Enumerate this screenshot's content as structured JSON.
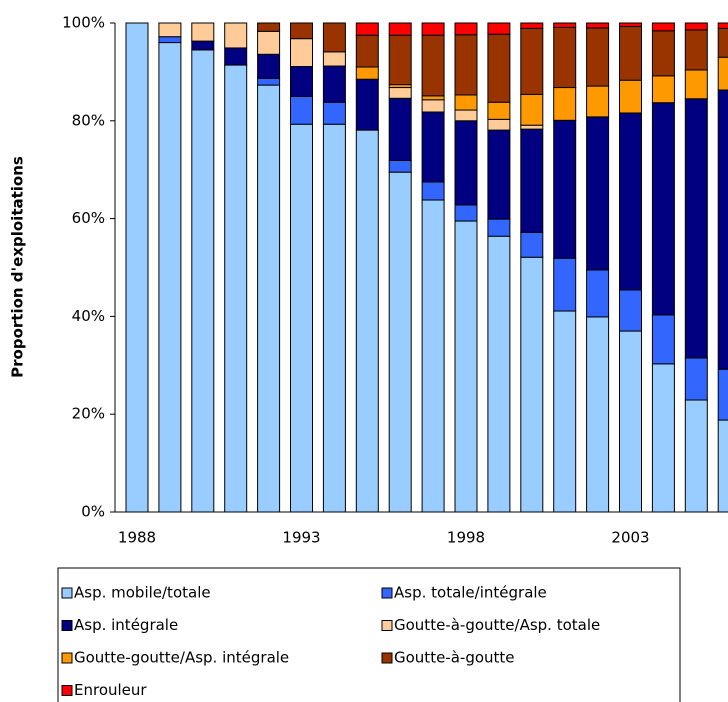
{
  "chart_data": {
    "type": "stacked_bar",
    "y_label": "Proportion d'exploitations",
    "categories": [
      "1988",
      null,
      null,
      null,
      null,
      "1993",
      null,
      null,
      null,
      null,
      "1998",
      null,
      null,
      null,
      null,
      "2003",
      null,
      null,
      null
    ],
    "ylim": [
      0,
      100
    ],
    "yticks": [
      {
        "value": 0,
        "label": "0%"
      },
      {
        "value": 20,
        "label": "20%"
      },
      {
        "value": 40,
        "label": "40%"
      },
      {
        "value": 60,
        "label": "60%"
      },
      {
        "value": 80,
        "label": "80%"
      },
      {
        "value": 100,
        "label": "100%"
      }
    ],
    "legend": "bottom",
    "series": [
      {
        "name": "Asp. mobile/totale",
        "color": "#99ccff",
        "values": [
          100,
          96,
          94.5,
          91.4,
          87.3,
          79.3,
          79.3,
          78.1,
          69.5,
          63.8,
          59.5,
          56.4,
          52.1,
          41.1,
          39.9,
          37,
          30.3,
          22.9,
          18.8
        ]
      },
      {
        "name": "Asp. totale/intégrale",
        "color": "#3366ff",
        "values": [
          0,
          1.2,
          0,
          0,
          1.4,
          5.7,
          4.5,
          0,
          2.4,
          3.7,
          3.3,
          3.5,
          5.1,
          10.8,
          9.6,
          8.4,
          10,
          8.6,
          10.4
        ]
      },
      {
        "name": "Asp. intégrale",
        "color": "#000080",
        "values": [
          0,
          0,
          1.8,
          3.5,
          4.9,
          6.1,
          7.4,
          10.4,
          12.7,
          14.3,
          17.2,
          18.2,
          21.1,
          28.2,
          31.3,
          36.2,
          43.4,
          53,
          57.1
        ]
      },
      {
        "name": "Goutte-à-goutte/Asp. totale",
        "color": "#ffcc99",
        "values": [
          0,
          2.8,
          3.7,
          5.1,
          4.7,
          5.7,
          2.9,
          0,
          2.2,
          2.5,
          2.2,
          2.2,
          0.8,
          0,
          0,
          0,
          0,
          0,
          0
        ]
      },
      {
        "name": "Goutte-goutte/Asp. intégrale",
        "color": "#ff9900",
        "values": [
          0,
          0,
          0,
          0,
          0,
          0,
          0,
          2.5,
          0.6,
          0.8,
          3.1,
          3.5,
          6.3,
          6.7,
          6.3,
          6.7,
          5.5,
          5.9,
          6.7
        ]
      },
      {
        "name": "Goutte-à-goutte",
        "color": "#993300",
        "values": [
          0,
          0,
          0,
          0,
          1.7,
          3.2,
          5.9,
          6.5,
          10.1,
          12.4,
          12.3,
          13.9,
          13.5,
          12.3,
          11.9,
          11,
          9.2,
          8.2,
          5.9
        ]
      },
      {
        "name": "Enrouleur",
        "color": "#ff0000",
        "values": [
          0,
          0,
          0,
          0,
          0,
          0,
          0,
          2.5,
          2.5,
          2.5,
          2.4,
          2.3,
          1.1,
          0.9,
          1,
          0.7,
          1.6,
          1.4,
          1.1
        ]
      }
    ]
  }
}
